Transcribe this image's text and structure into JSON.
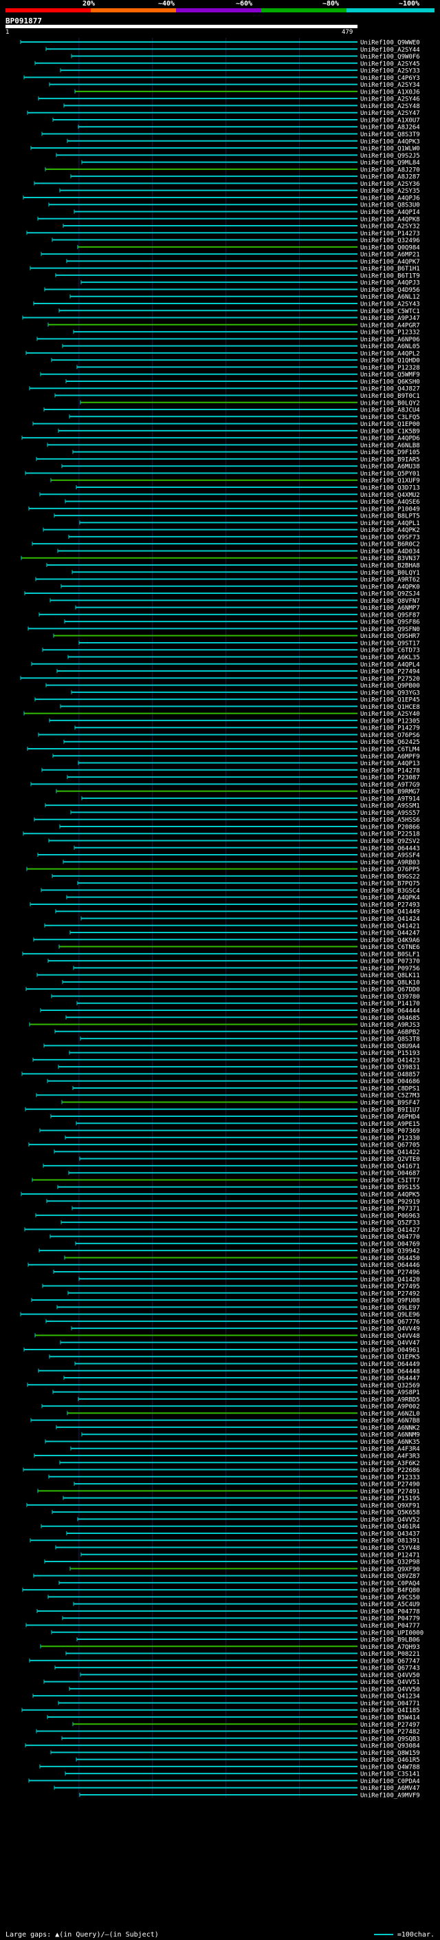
{
  "header": {
    "percent_labels": [
      "20%",
      "~40%",
      "~60%",
      "~80%",
      "~100%"
    ],
    "segment_colors": [
      "#ff0000",
      "#ff6600",
      "#8800cc",
      "#00aa00",
      "#00cccc"
    ]
  },
  "query": {
    "id": "BP091877",
    "start": "1",
    "end": "479"
  },
  "legend": {
    "gaps_text": "Large gaps: ▲(in Query)/—(in Subject)",
    "scale_text": "=100char."
  },
  "chart_data": {
    "type": "alignment",
    "query_length": 479,
    "scale": "100 char",
    "hits": [
      "UniRef100_Q9WWE0",
      "UniRef100_A2SY44",
      "UniRef100_Q9W0F6",
      "UniRef100_A2SY45",
      "UniRef100_A2SY33",
      "UniRef100_C4P6Y3",
      "UniRef100_A2SY34",
      "UniRef100_A1X0J6",
      "UniRef100_A2SY46",
      "UniRef100_A2SY48",
      "UniRef100_A2SY47",
      "UniRef100_A1X0U7",
      "UniRef100_A8J264",
      "UniRef100_Q8S3T9",
      "UniRef100_A4QPK3",
      "UniRef100_Q1WLW0",
      "UniRef100_Q9S2J5",
      "UniRef100_Q9ML84",
      "UniRef100_A8J270",
      "UniRef100_A8J287",
      "UniRef100_A2SY36",
      "UniRef100_A2SY35",
      "UniRef100_A4QPJ6",
      "UniRef100_Q8S3U0",
      "UniRef100_A4QPI4",
      "UniRef100_A4QPK8",
      "UniRef100_A2SY32",
      "UniRef100_P14273",
      "UniRef100_Q32496",
      "UniRef100_Q0Q984",
      "UniRef100_A6MP21",
      "UniRef100_A4QPK7",
      "UniRef100_B6T1H1",
      "UniRef100_B6T1T9",
      "UniRef100_A4QPJ3",
      "UniRef100_Q4D956",
      "UniRef100_A6NL12",
      "UniRef100_A2SY43",
      "UniRef100_C5WTC1",
      "UniRef100_A9PJ47",
      "UniRef100_A4PGR7",
      "UniRef100_P12332",
      "UniRef100_A6NP06",
      "UniRef100_A6NL05",
      "UniRef100_A4QPL2",
      "UniRef100_Q1QHD0",
      "UniRef100_P12328",
      "UniRef100_Q5WMF9",
      "UniRef100_Q6KSH0",
      "UniRef100_Q4J827",
      "UniRef100_B9T0C1",
      "UniRef100_B0LQY2",
      "UniRef100_A8JCU4",
      "UniRef100_C3LFQ5",
      "UniRef100_Q1EP00",
      "UniRef100_C1K5B9",
      "UniRef100_A4QPD6",
      "UniRef100_A6NLB8",
      "UniRef100_D9F105",
      "UniRef100_B9IAR5",
      "UniRef100_A6MU38",
      "UniRef100_Q5PY01",
      "UniRef100_Q1XUF9",
      "UniRef100_Q3D713",
      "UniRef100_Q4XMU2",
      "UniRef100_A4QSE6",
      "UniRef100_P10049",
      "UniRef100_B8LPT5",
      "UniRef100_A4QPL1",
      "UniRef100_A4QPK2",
      "UniRef100_Q9SF73",
      "UniRef100_B6R0C2",
      "UniRef100_A4D034",
      "UniRef100_B3VN37",
      "UniRef100_B2BHA8",
      "UniRef100_B0LQY1",
      "UniRef100_A9RT62",
      "UniRef100_A4QPK0",
      "UniRef100_Q9ZSJ4",
      "UniRef100_Q8VFN7",
      "UniRef100_A6NMP7",
      "UniRef100_Q9SF87",
      "UniRef100_Q9SF86",
      "UniRef100_Q9SFN0",
      "UniRef100_Q9SHR7",
      "UniRef100_Q9ST17",
      "UniRef100_C6TD73",
      "UniRef100_A6KL35",
      "UniRef100_A4QPL4",
      "UniRef100_P27494",
      "UniRef100_P27520",
      "UniRef100_Q9PB00",
      "UniRef100_Q93YG3",
      "UniRef100_Q1EP45",
      "UniRef100_Q1HCE8",
      "UniRef100_A2SY40",
      "UniRef100_P12305",
      "UniRef100_P14279",
      "UniRef100_O76PS6",
      "UniRef100_Q62425",
      "UniRef100_C6TLM4",
      "UniRef100_A6MPF9",
      "UniRef100_A4QP13",
      "UniRef100_P14278",
      "UniRef100_P23087",
      "UniRef100_A9T7G9",
      "UniRef100_B9RMG7",
      "UniRef100_A9T914",
      "UniRef100_A9SSM1",
      "UniRef100_A9SS57",
      "UniRef100_A5HSS6",
      "UniRef100_P20866",
      "UniRef100_P22518",
      "UniRef100_Q9ZSV2",
      "UniRef100_O64443",
      "UniRef100_A9SSF4",
      "UniRef100_A9RB03",
      "UniRef100_O76PP5",
      "UniRef100_B9GS22",
      "UniRef100_B7PQ75",
      "UniRef100_B3GSC4",
      "UniRef100_A4QPK4",
      "UniRef100_P27493",
      "UniRef100_Q41449",
      "UniRef100_Q41424",
      "UniRef100_Q41421",
      "UniRef100_Q44247",
      "UniRef100_Q4K9A6",
      "UniRef100_C6TNE6",
      "UniRef100_B0SLF1",
      "UniRef100_P07370",
      "UniRef100_P09756",
      "UniRef100_Q8LK11",
      "UniRef100_Q8LK10",
      "UniRef100_Q67DD0",
      "UniRef100_Q39780",
      "UniRef100_P14170",
      "UniRef100_O64444",
      "UniRef100_O04685",
      "UniRef100_A9RJS3",
      "UniRef100_A6BPB2",
      "UniRef100_Q8S3T8",
      "UniRef100_Q8U9A4",
      "UniRef100_P15193",
      "UniRef100_Q41423",
      "UniRef100_Q39831",
      "UniRef100_O48857",
      "UniRef100_O04686",
      "UniRef100_C8DPS1",
      "UniRef100_C5Z7M3",
      "UniRef100_B9SF47",
      "UniRef100_B9I1U7",
      "UniRef100_A6PHD4",
      "UniRef100_A9PE15",
      "UniRef100_P07369",
      "UniRef100_P12330",
      "UniRef100_Q67705",
      "UniRef100_Q41422",
      "UniRef100_Q2VTE0",
      "UniRef100_Q41671",
      "UniRef100_O04687",
      "UniRef100_C5ITT7",
      "UniRef100_B9S155",
      "UniRef100_A4QPK5",
      "UniRef100_P92919",
      "UniRef100_P07371",
      "UniRef100_P06963",
      "UniRef100_Q5ZF33",
      "UniRef100_Q41427",
      "UniRef100_O04770",
      "UniRef100_O04769",
      "UniRef100_Q39942",
      "UniRef100_O64450",
      "UniRef100_O64446",
      "UniRef100_P27496",
      "UniRef100_Q41420",
      "UniRef100_P27495",
      "UniRef100_P27492",
      "UniRef100_Q9FU08",
      "UniRef100_Q9LE97",
      "UniRef100_Q9LE96",
      "UniRef100_Q67776",
      "UniRef100_Q4VV49",
      "UniRef100_Q4VV48",
      "UniRef100_Q4VV47",
      "UniRef100_O04961",
      "UniRef100_Q1EPK5",
      "UniRef100_O64449",
      "UniRef100_O64448",
      "UniRef100_O64447",
      "UniRef100_Q32569",
      "UniRef100_A9S8P1",
      "UniRef100_A9RBD5",
      "UniRef100_A9P002",
      "UniRef100_A6NZL0",
      "UniRef100_A6N7B8",
      "UniRef100_A6NNK2",
      "UniRef100_A6NNM9",
      "UniRef100_A6NK35",
      "UniRef100_A4F3R4",
      "UniRef100_A4F3R3",
      "UniRef100_A3F6K2",
      "UniRef100_P22686",
      "UniRef100_P12333",
      "UniRef100_P27490",
      "UniRef100_P27491",
      "UniRef100_P15195",
      "UniRef100_Q9XF91",
      "UniRef100_Q5K658",
      "UniRef100_Q4VV52",
      "UniRef100_Q461R4",
      "UniRef100_Q43437",
      "UniRef100_O81391",
      "UniRef100_C5YV48",
      "UniRef100_P12471",
      "UniRef100_Q32P98",
      "UniRef100_Q9XF90",
      "UniRef100_Q8VZ87",
      "UniRef100_C0PAQ4",
      "UniRef100_B4FQ80",
      "UniRef100_A9CS50",
      "UniRef100_A5C4U9",
      "UniRef100_P04778",
      "UniRef100_P04779",
      "UniRef100_P04777",
      "UniRef100_UPI0000",
      "UniRef100_B9LB06",
      "UniRef100_A7QH93",
      "UniRef100_P08221",
      "UniRef100_Q67747",
      "UniRef100_Q67743",
      "UniRef100_Q4VV50",
      "UniRef100_Q4VV51",
      "UniRef100_Q4VV50",
      "UniRef100_Q41234",
      "UniRef100_O04771",
      "UniRef100_Q4I185",
      "UniRef100_B5W414",
      "UniRef100_P27497",
      "UniRef100_P27482",
      "UniRef100_Q9SQB3",
      "UniRef100_Q93084",
      "UniRef100_Q8W159",
      "UniRef100_Q461R5",
      "UniRef100_Q4W788",
      "UniRef100_C3S141",
      "UniRef100_C0PDA4",
      "UniRef100_A6MV47",
      "UniRef100_A9MVF9"
    ]
  }
}
